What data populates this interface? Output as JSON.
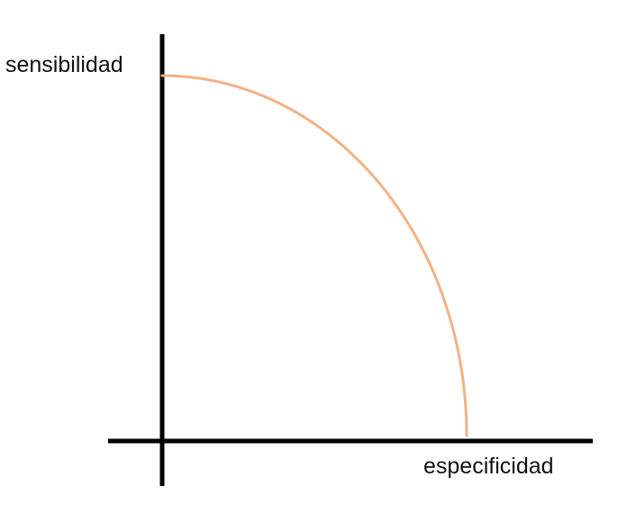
{
  "chart_data": {
    "type": "line",
    "xlabel": "especificidad",
    "ylabel": "sensibilidad",
    "xlim": [
      0,
      1
    ],
    "ylim": [
      0,
      1
    ],
    "grid": false,
    "series": [
      {
        "color": "#f4b183",
        "x": [
          0,
          0.1,
          0.2,
          0.3,
          0.4,
          0.5,
          0.6,
          0.7,
          0.8,
          0.9,
          1.0
        ],
        "y": [
          1.0,
          0.995,
          0.98,
          0.954,
          0.917,
          0.866,
          0.8,
          0.714,
          0.6,
          0.436,
          0.0
        ]
      }
    ]
  }
}
